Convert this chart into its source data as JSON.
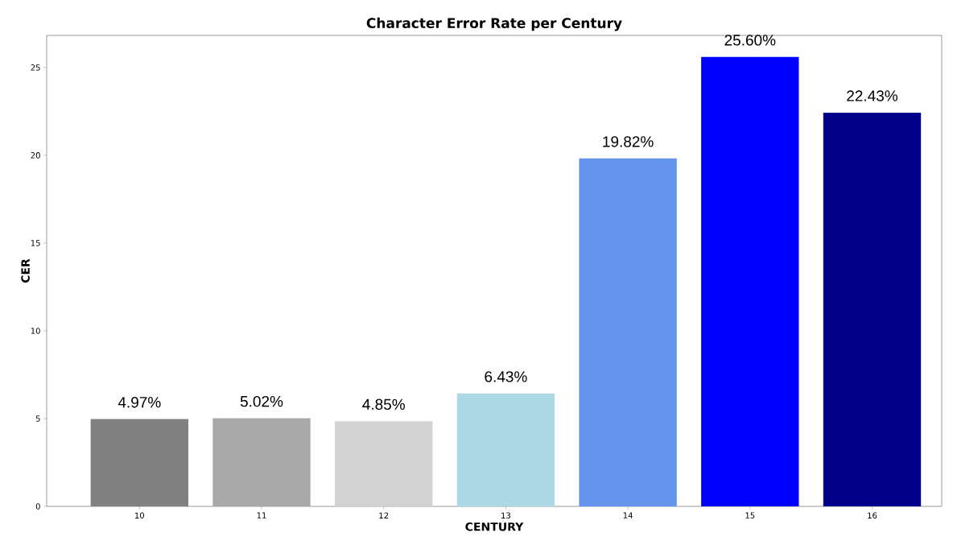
{
  "chart_data": {
    "type": "bar",
    "title": "Character Error Rate per Century",
    "xlabel": "CENTURY",
    "ylabel": "CER",
    "categories": [
      "10",
      "11",
      "12",
      "13",
      "14",
      "15",
      "16"
    ],
    "values": [
      4.97,
      5.02,
      4.85,
      6.43,
      19.82,
      25.6,
      22.43
    ],
    "colors": [
      "#808080",
      "#a9a9a9",
      "#d3d3d3",
      "#add8e6",
      "#6495ed",
      "#0000ff",
      "#00008b"
    ],
    "value_labels": [
      "4.97%",
      "5.02%",
      "4.85%",
      "6.43%",
      "19.82%",
      "25.60%",
      "22.43%"
    ],
    "ylim": [
      0,
      26.83
    ],
    "yticks": [
      0,
      5,
      10,
      15,
      20,
      25
    ],
    "grid": false
  }
}
